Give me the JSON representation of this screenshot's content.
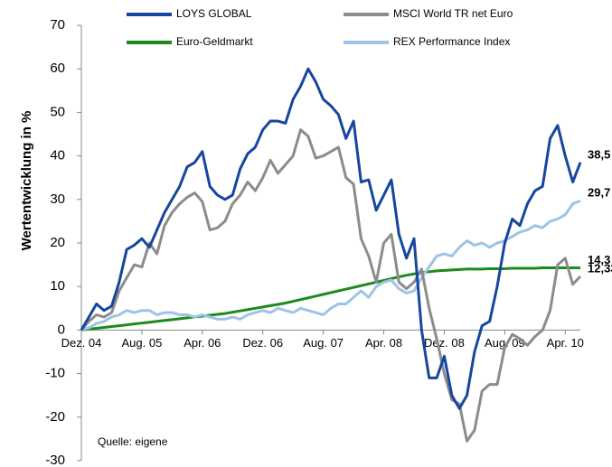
{
  "chart_data": {
    "type": "line",
    "y_label": "Wertentwicklung in %",
    "annotation": "Quelle: eigene",
    "categories": [
      "Dez. 04",
      null,
      null,
      null,
      null,
      null,
      null,
      null,
      "Aug. 05",
      null,
      null,
      null,
      null,
      null,
      null,
      null,
      "Apr. 06",
      null,
      null,
      null,
      null,
      null,
      null,
      null,
      "Dez. 06",
      null,
      null,
      null,
      null,
      null,
      null,
      null,
      "Aug. 07",
      null,
      null,
      null,
      null,
      null,
      null,
      null,
      "Apr. 08",
      null,
      null,
      null,
      null,
      null,
      null,
      null,
      "Dez. 08",
      null,
      null,
      null,
      null,
      null,
      null,
      null,
      "Aug. 09",
      null,
      null,
      null,
      null,
      null,
      null,
      null,
      "Apr. 10",
      null,
      null
    ],
    "series": [
      {
        "name": "LOYS GLOBAL",
        "color": "#17469e",
        "label_color": "#1f2f7a",
        "values": [
          0,
          3,
          6,
          4.5,
          5.5,
          11,
          18.5,
          19.5,
          21,
          19,
          23,
          27,
          30,
          33,
          37.5,
          38.5,
          41,
          33,
          31,
          30,
          31,
          37,
          40.5,
          42,
          46,
          48,
          48,
          47.5,
          53,
          56,
          60,
          57,
          53,
          51.5,
          49.5,
          44,
          48,
          34,
          34.5,
          27.5,
          31,
          34.5,
          22,
          16.5,
          21,
          0,
          -11,
          -11,
          -6,
          -15,
          -18,
          -15,
          -5,
          1,
          2,
          10,
          20,
          25.5,
          24,
          29,
          32,
          33,
          44,
          47,
          40,
          34,
          38.5
        ],
        "value_labels": {
          "66": "38,5"
        }
      },
      {
        "name": "MSCI World TR net Euro",
        "color": "#8c8c8c",
        "label_color": "#8c8c8c",
        "values": [
          0,
          2,
          3.5,
          3,
          4,
          9,
          12,
          15,
          14.5,
          20,
          17.5,
          24,
          27,
          29,
          30.5,
          31.5,
          29.5,
          23,
          23.5,
          25,
          29,
          31,
          34,
          32,
          35,
          39,
          36,
          38,
          40,
          46,
          44.5,
          39.5,
          40,
          41,
          42,
          35,
          33.5,
          21,
          17,
          11,
          20,
          22,
          11,
          9.5,
          11,
          14,
          5,
          -2,
          -10,
          -16,
          -17,
          -25.5,
          -23,
          -14,
          -12.5,
          -12.5,
          -4,
          -1,
          -2,
          -3.5,
          -1.5,
          0,
          4.5,
          15,
          16.5,
          10.5,
          12.33
        ],
        "value_labels": {
          "66": "12,33"
        }
      },
      {
        "name": "Euro-Geldmarkt",
        "color": "#1e8a1e",
        "label_color": "#3a7d1a",
        "values": [
          0,
          0.2,
          0.4,
          0.6,
          0.8,
          1,
          1.2,
          1.4,
          1.6,
          1.8,
          2,
          2.2,
          2.4,
          2.6,
          2.8,
          3,
          3.2,
          3.4,
          3.6,
          3.8,
          4.1,
          4.4,
          4.7,
          5,
          5.3,
          5.6,
          5.9,
          6.2,
          6.6,
          7,
          7.4,
          7.8,
          8.2,
          8.6,
          9,
          9.4,
          9.8,
          10.2,
          10.6,
          11,
          11.4,
          11.8,
          12.2,
          12.6,
          12.9,
          13.2,
          13.4,
          13.6,
          13.7,
          13.8,
          13.9,
          14,
          14,
          14,
          14.1,
          14.1,
          14.1,
          14.2,
          14.2,
          14.2,
          14.2,
          14.3,
          14.3,
          14.3,
          14.3,
          14.3,
          14.3
        ],
        "value_labels": {
          "66": "14,3"
        }
      },
      {
        "name": "REX Performance Index",
        "color": "#9dc3e6",
        "label_color": "#9dc3e6",
        "values": [
          0,
          0.5,
          1.5,
          2,
          3,
          3.5,
          4.5,
          4,
          4.5,
          4.5,
          3.5,
          4,
          4,
          3.5,
          3.5,
          3,
          3.5,
          3,
          2.5,
          2.5,
          3,
          2.5,
          3.5,
          4,
          4.5,
          4,
          5,
          4.5,
          4,
          5,
          4.5,
          4,
          3.5,
          5,
          6,
          6,
          7.5,
          9,
          7.5,
          10,
          11,
          11.5,
          9.5,
          8.5,
          9,
          12,
          14.5,
          17,
          17.5,
          17,
          19,
          20.5,
          19.5,
          20,
          19,
          20,
          20.5,
          21.5,
          22.5,
          23,
          24,
          23.5,
          25,
          25.5,
          26.5,
          29,
          29.7
        ],
        "value_labels": {
          "66": "29,7"
        }
      }
    ],
    "ylim": [
      -30,
      70
    ],
    "yticks": [
      -30,
      -20,
      -10,
      0,
      10,
      20,
      30,
      40,
      50,
      60,
      70
    ]
  }
}
